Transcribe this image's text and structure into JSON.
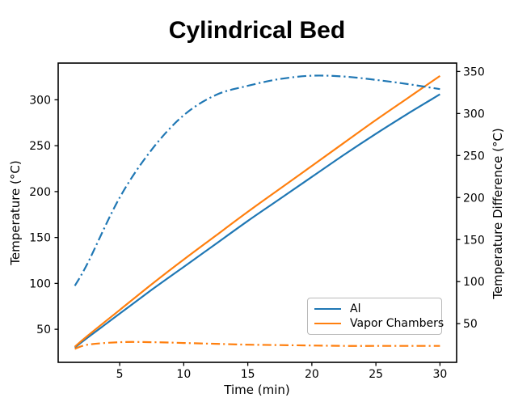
{
  "figure": {
    "background": "#ffffff"
  },
  "chart_data": {
    "type": "line",
    "title": "Cylindrical Bed",
    "xlabel": "Time (min)",
    "ylabel_left": "Temperature (°C)",
    "ylabel_right": "Temperature Difference (°C)",
    "xlim": [
      0.2,
      31.3
    ],
    "ylim_left": [
      14,
      340
    ],
    "ylim_right": [
      4,
      360
    ],
    "xticks": [
      5,
      10,
      15,
      20,
      25,
      30
    ],
    "yticks_left": [
      50,
      100,
      150,
      200,
      250,
      300
    ],
    "yticks_right": [
      50,
      100,
      150,
      200,
      250,
      300,
      350
    ],
    "grid": false,
    "legend": [
      "Al",
      "Vapor Chambers"
    ],
    "legend_position": "lower-right-inside",
    "x": [
      1.5,
      2.5,
      5,
      7.5,
      10,
      12.5,
      15,
      17.5,
      20,
      22.5,
      25,
      27.5,
      30
    ],
    "series": [
      {
        "name": "Al",
        "axis": "left",
        "style": "solid",
        "color": "#1f77b4",
        "values": [
          30,
          41,
          67,
          93,
          118,
          143,
          168,
          192,
          216,
          240,
          263,
          285,
          306
        ]
      },
      {
        "name": "Vapor Chambers",
        "axis": "left",
        "style": "solid",
        "color": "#ff7f0e",
        "values": [
          31,
          43,
          71,
          99,
          126,
          152,
          178,
          203,
          228,
          253,
          278,
          302,
          326
        ]
      },
      {
        "name": "Al temperature difference",
        "axis": "right",
        "style": "dashdot",
        "color": "#1f77b4",
        "values": [
          95,
          122,
          200,
          257,
          298,
          322,
          333,
          341,
          345,
          344,
          340,
          335,
          329
        ]
      },
      {
        "name": "Vapor Chambers temperature difference",
        "axis": "right",
        "style": "dashdot",
        "color": "#ff7f0e",
        "values": [
          20,
          25,
          28,
          28,
          27,
          26,
          25,
          24.5,
          24,
          23.5,
          23.5,
          23.5,
          23.5
        ]
      }
    ],
    "colors": {
      "blue": "#1f77b4",
      "orange": "#ff7f0e",
      "axis": "#000000"
    }
  }
}
